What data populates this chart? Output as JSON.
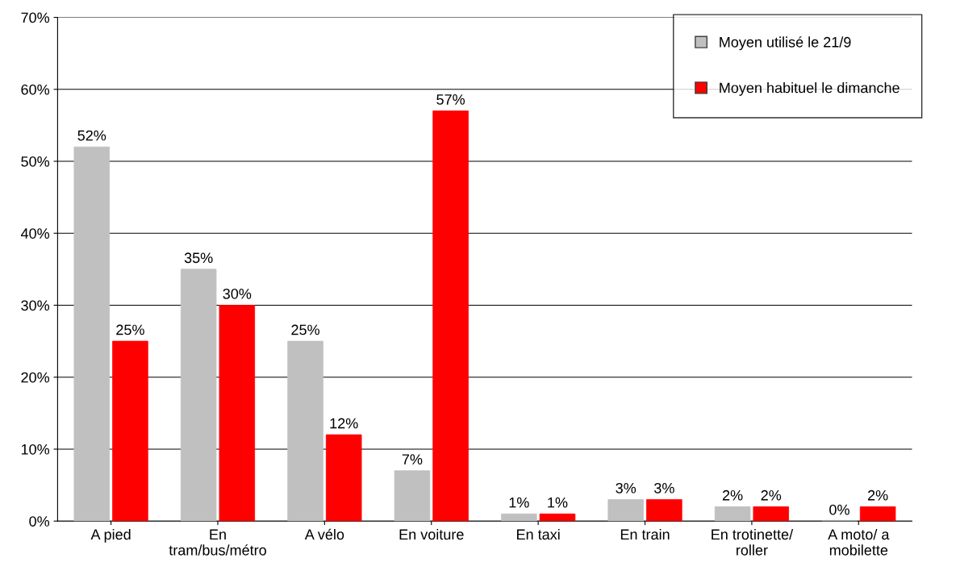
{
  "chart_data": {
    "type": "bar",
    "categories": [
      "A pied",
      "En\ntram/bus/métro",
      "A vélo",
      "En voiture",
      "En taxi",
      "En train",
      "En trotinette/\nroller",
      "A moto/ a\nmobilette"
    ],
    "series": [
      {
        "name": "Moyen utilisé le 21/9",
        "color": "#c0c0c0",
        "values": [
          52,
          35,
          25,
          7,
          1,
          3,
          2,
          0
        ],
        "value_labels": [
          "52%",
          "35%",
          "25%",
          "7%",
          "1%",
          "3%",
          "2%",
          "0%"
        ]
      },
      {
        "name": "Moyen habituel le dimanche",
        "color": "#ff0000",
        "values": [
          25,
          30,
          12,
          57,
          1,
          3,
          2,
          2
        ],
        "value_labels": [
          "25%",
          "30%",
          "12%",
          "57%",
          "1%",
          "3%",
          "2%",
          "2%"
        ]
      }
    ],
    "ylim": [
      0,
      70
    ],
    "yticks": [
      {
        "value": 0,
        "label": "0%"
      },
      {
        "value": 10,
        "label": "10%"
      },
      {
        "value": 20,
        "label": "20%"
      },
      {
        "value": 30,
        "label": "30%"
      },
      {
        "value": 40,
        "label": "40%"
      },
      {
        "value": 50,
        "label": "50%"
      },
      {
        "value": 60,
        "label": "60%"
      },
      {
        "value": 70,
        "label": "70%"
      }
    ],
    "grid": "y",
    "legend": "top right"
  }
}
